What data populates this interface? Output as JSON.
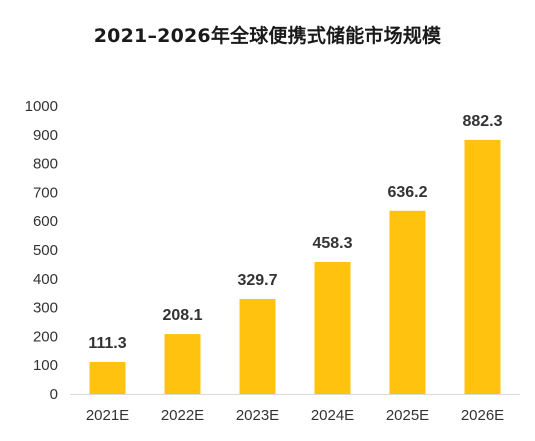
{
  "chart_data": {
    "type": "bar",
    "title": "2021–2026年全球便携式储能市场规模",
    "categories": [
      "2021E",
      "2022E",
      "2023E",
      "2024E",
      "2025E",
      "2026E"
    ],
    "values": [
      111.3,
      208.1,
      329.7,
      458.3,
      636.2,
      882.3
    ],
    "data_labels": [
      "111.3",
      "208.1",
      "329.7",
      "458.3",
      "636.2",
      "882.3"
    ],
    "ylim": [
      0,
      1000
    ],
    "yticks": [
      0,
      100,
      200,
      300,
      400,
      500,
      600,
      700,
      800,
      900,
      1000
    ],
    "grid": false,
    "bar_color": "#FFC20E",
    "axis_color": "#D9D9D9",
    "text_color": "#333333"
  }
}
